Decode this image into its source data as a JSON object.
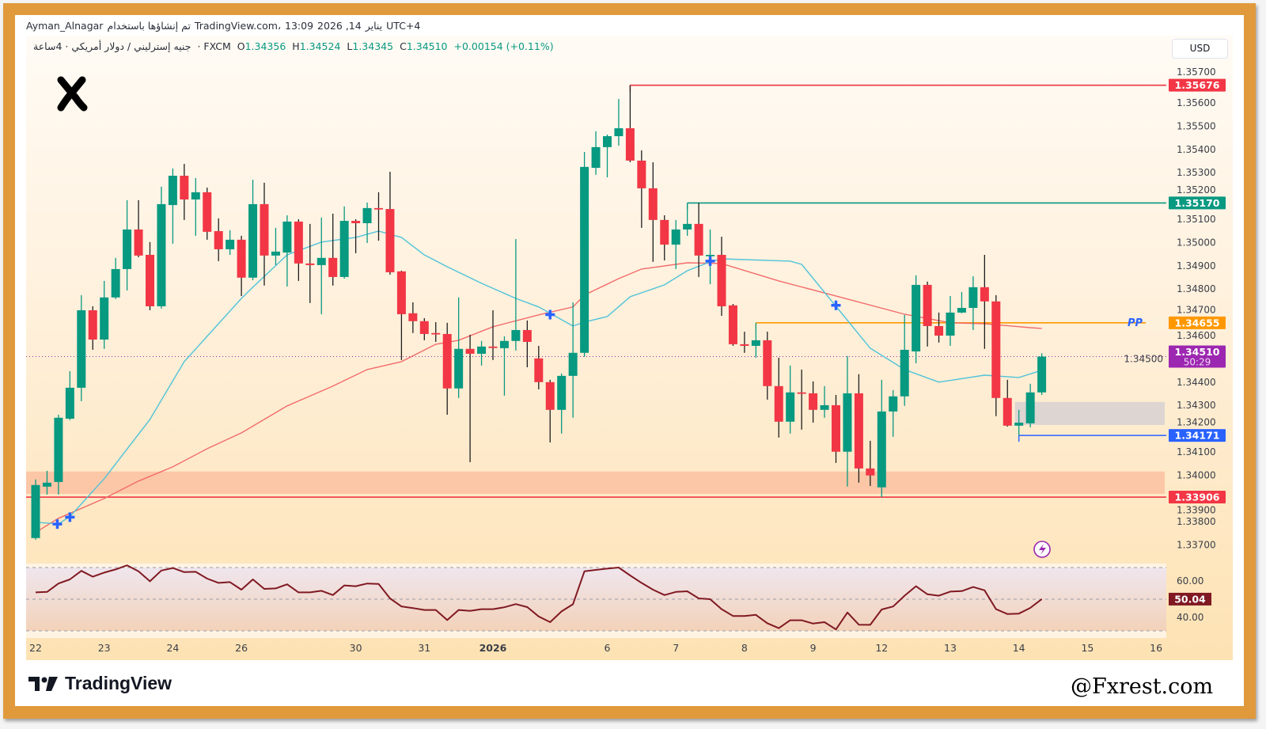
{
  "header": {
    "line1": [
      "Ayman_Alnagar",
      "تم إنشاؤها باستخدام",
      "TradingView.com،",
      "13:09",
      "2026 ,14",
      "يناير",
      "UTC+4"
    ],
    "symbol": "جنيه إسترليني / دولار أمريكي · 4ساعة",
    "exchange": "· FXCM",
    "ohlc": {
      "o_label": "O",
      "o": "1.34356",
      "h_label": "H",
      "h": "1.34524",
      "l_label": "L",
      "l": "1.34345",
      "c_label": "C",
      "c": "1.34510",
      "change": "+0.00154 (+0.11%)"
    },
    "currency_button": "USD"
  },
  "footer": {
    "brand": "TradingView",
    "watermark": "@Fxrest.com"
  },
  "colors": {
    "up": "#089981",
    "down": "#f23645",
    "fast_ma": "#4fc3d9",
    "slow_ma": "#f26b6b",
    "frame": "#e09a3c",
    "rsi": "#801922",
    "current": "#9c27b0",
    "pp": "#ff9800",
    "support": "#2962ff"
  },
  "chart_data": {
    "type": "candlestick",
    "timeframe": "4h",
    "ylim": [
      1.3367,
      1.3575
    ],
    "y_ticks": [
      "1.35700",
      "1.35600",
      "1.35500",
      "1.35400",
      "1.35300",
      "1.35200",
      "1.35100",
      "1.35000",
      "1.34900",
      "1.34800",
      "1.34700",
      "1.34600",
      "1.34500",
      "1.34400",
      "1.34300",
      "1.34200",
      "1.34100",
      "1.34000",
      "1.33900",
      "1.33800",
      "1.33700"
    ],
    "x_ticks": [
      {
        "label": "22",
        "candle": 0
      },
      {
        "label": "23",
        "candle": 6
      },
      {
        "label": "24",
        "candle": 12
      },
      {
        "label": "26",
        "candle": 18
      },
      {
        "label": "30",
        "candle": 28
      },
      {
        "label": "31",
        "candle": 34
      },
      {
        "label": "2026",
        "candle": 40,
        "bold": true
      },
      {
        "label": "6",
        "candle": 50
      },
      {
        "label": "7",
        "candle": 56
      },
      {
        "label": "8",
        "candle": 62
      },
      {
        "label": "9",
        "candle": 68
      },
      {
        "label": "12",
        "candle": 74
      },
      {
        "label": "13",
        "candle": 80
      },
      {
        "label": "14",
        "candle": 86
      },
      {
        "label": "15",
        "candle": 92
      },
      {
        "label": "16",
        "candle": 98
      }
    ],
    "candles_ohlc": [
      [
        1.3373,
        1.33982,
        1.33723,
        1.33958
      ],
      [
        1.33951,
        1.34019,
        1.33917,
        1.33968
      ],
      [
        1.33971,
        1.3426,
        1.33917,
        1.34247
      ],
      [
        1.34243,
        1.34447,
        1.34237,
        1.34376
      ],
      [
        1.34376,
        1.34774,
        1.34318,
        1.34709
      ],
      [
        1.34709,
        1.34726,
        1.34539,
        1.34583
      ],
      [
        1.34583,
        1.34835,
        1.34543,
        1.34764
      ],
      [
        1.34764,
        1.34934,
        1.34757,
        1.34886
      ],
      [
        1.34886,
        1.35182,
        1.34794,
        1.35056
      ],
      [
        1.35056,
        1.35182,
        1.34937,
        1.34944
      ],
      [
        1.34947,
        1.35002,
        1.34709,
        1.34726
      ],
      [
        1.34726,
        1.3524,
        1.34716,
        1.35165
      ],
      [
        1.35161,
        1.35318,
        1.34995,
        1.35287
      ],
      [
        1.35287,
        1.35338,
        1.35097,
        1.35185
      ],
      [
        1.35185,
        1.35277,
        1.35029,
        1.35216
      ],
      [
        1.35216,
        1.35236,
        1.35012,
        1.35046
      ],
      [
        1.35049,
        1.35104,
        1.3492,
        1.34971
      ],
      [
        1.34971,
        1.35053,
        1.34947,
        1.35012
      ],
      [
        1.35012,
        1.35029,
        1.3477,
        1.34849
      ],
      [
        1.34849,
        1.3527,
        1.34838,
        1.35165
      ],
      [
        1.35165,
        1.35257,
        1.34815,
        1.34944
      ],
      [
        1.34944,
        1.35063,
        1.34903,
        1.34961
      ],
      [
        1.34957,
        1.35117,
        1.34811,
        1.3509
      ],
      [
        1.3509,
        1.351,
        1.34835,
        1.3491
      ],
      [
        1.3491,
        1.3508,
        1.3474,
        1.34903
      ],
      [
        1.34903,
        1.35107,
        1.34692,
        1.34934
      ],
      [
        1.34934,
        1.35124,
        1.34815,
        1.34852
      ],
      [
        1.34852,
        1.35155,
        1.34845,
        1.35093
      ],
      [
        1.35093,
        1.351,
        1.34954,
        1.35083
      ],
      [
        1.35083,
        1.35172,
        1.34998,
        1.35148
      ],
      [
        1.35148,
        1.35216,
        1.35008,
        1.35144
      ],
      [
        1.35144,
        1.35304,
        1.34862,
        1.34872
      ],
      [
        1.34876,
        1.34879,
        1.34495,
        1.34692
      ],
      [
        1.34696,
        1.34743,
        1.34611,
        1.34662
      ],
      [
        1.34662,
        1.34675,
        1.3458,
        1.34607
      ],
      [
        1.34611,
        1.34658,
        1.34573,
        1.34607
      ],
      [
        1.34607,
        1.34655,
        1.3426,
        1.34373
      ],
      [
        1.34373,
        1.34764,
        1.34332,
        1.34543
      ],
      [
        1.34543,
        1.34604,
        1.34056,
        1.34522
      ],
      [
        1.34522,
        1.34577,
        1.34471,
        1.34553
      ],
      [
        1.34553,
        1.34709,
        1.34495,
        1.34549
      ],
      [
        1.34546,
        1.34597,
        1.34342,
        1.34577
      ],
      [
        1.34577,
        1.35015,
        1.34536,
        1.34624
      ],
      [
        1.34624,
        1.34665,
        1.34464,
        1.34573
      ],
      [
        1.34502,
        1.34556,
        1.34369,
        1.344
      ],
      [
        1.344,
        1.3441,
        1.34141,
        1.34281
      ],
      [
        1.34281,
        1.34437,
        1.34179,
        1.34427
      ],
      [
        1.34427,
        1.34743,
        1.34247,
        1.34526
      ],
      [
        1.34526,
        1.35389,
        1.34509,
        1.35325
      ],
      [
        1.35321,
        1.35478,
        1.35291,
        1.3541
      ],
      [
        1.3541,
        1.35464,
        1.3528,
        1.35457
      ],
      [
        1.35457,
        1.35617,
        1.35416,
        1.35491
      ],
      [
        1.35491,
        1.35676,
        1.35345,
        1.35352
      ],
      [
        1.35352,
        1.35396,
        1.35063,
        1.35233
      ],
      [
        1.35233,
        1.35345,
        1.34917,
        1.35097
      ],
      [
        1.35097,
        1.35117,
        1.34923,
        1.34991
      ],
      [
        1.34991,
        1.35097,
        1.34886,
        1.35056
      ],
      [
        1.35056,
        1.35168,
        1.35029,
        1.3508
      ],
      [
        1.3508,
        1.3517,
        1.34852,
        1.34944
      ],
      [
        1.34944,
        1.35056,
        1.34821,
        1.34947
      ],
      [
        1.34947,
        1.35025,
        1.34685,
        1.34726
      ],
      [
        1.3473,
        1.34736,
        1.34556,
        1.34563
      ],
      [
        1.34563,
        1.34617,
        1.34526,
        1.34556
      ],
      [
        1.34556,
        1.34655,
        1.34505,
        1.3458
      ],
      [
        1.3458,
        1.34617,
        1.34325,
        1.34383
      ],
      [
        1.34383,
        1.34505,
        1.34162,
        1.3423
      ],
      [
        1.3423,
        1.34471,
        1.34179,
        1.34356
      ],
      [
        1.34356,
        1.34454,
        1.34196,
        1.34352
      ],
      [
        1.34352,
        1.34403,
        1.34226,
        1.34281
      ],
      [
        1.34281,
        1.34383,
        1.34247,
        1.34301
      ],
      [
        1.34301,
        1.34345,
        1.34053,
        1.34101
      ],
      [
        1.34101,
        1.34512,
        1.33951,
        1.34352
      ],
      [
        1.34352,
        1.34434,
        1.33968,
        1.34029
      ],
      [
        1.34029,
        1.34148,
        1.33954,
        1.33999
      ],
      [
        1.33948,
        1.3441,
        1.33906,
        1.34274
      ],
      [
        1.34274,
        1.34366,
        1.34165,
        1.34339
      ],
      [
        1.34339,
        1.34689,
        1.34298,
        1.34539
      ],
      [
        1.34532,
        1.34859,
        1.34481,
        1.34818
      ],
      [
        1.34818,
        1.34832,
        1.34553,
        1.34641
      ],
      [
        1.34641,
        1.34699,
        1.3457,
        1.346
      ],
      [
        1.346,
        1.3477,
        1.34556,
        1.34699
      ],
      [
        1.34699,
        1.34787,
        1.34696,
        1.34719
      ],
      [
        1.34719,
        1.34855,
        1.34624,
        1.34808
      ],
      [
        1.34808,
        1.34947,
        1.34543,
        1.34747
      ],
      [
        1.34747,
        1.34774,
        1.34254,
        1.34332
      ],
      [
        1.34332,
        1.3441,
        1.34209,
        1.34213
      ],
      [
        1.34213,
        1.34281,
        1.34171,
        1.34226
      ],
      [
        1.34223,
        1.34393,
        1.34206,
        1.34356
      ],
      [
        1.34356,
        1.34524,
        1.34345,
        1.3451
      ]
    ],
    "fast_ma": [
      [
        0,
        1.33798
      ],
      [
        2,
        1.33791
      ],
      [
        3,
        1.33822
      ],
      [
        6,
        1.33985
      ],
      [
        10,
        1.3424
      ],
      [
        13,
        1.34488
      ],
      [
        18,
        1.3476
      ],
      [
        19,
        1.34808
      ],
      [
        22,
        1.34947
      ],
      [
        25,
        1.35002
      ],
      [
        28,
        1.35022
      ],
      [
        30,
        1.35049
      ],
      [
        32,
        1.35022
      ],
      [
        34,
        1.34947
      ],
      [
        36,
        1.34896
      ],
      [
        39,
        1.34825
      ],
      [
        42,
        1.3476
      ],
      [
        44,
        1.34723
      ],
      [
        47,
        1.34641
      ],
      [
        48,
        1.34658
      ],
      [
        50,
        1.34682
      ],
      [
        52,
        1.34767
      ],
      [
        55,
        1.34818
      ],
      [
        57,
        1.34879
      ],
      [
        59,
        1.34917
      ],
      [
        60,
        1.3493
      ],
      [
        66,
        1.3492
      ],
      [
        67,
        1.34906
      ],
      [
        70,
        1.34726
      ],
      [
        73,
        1.34546
      ],
      [
        76,
        1.34454
      ],
      [
        79,
        1.344
      ],
      [
        83,
        1.3443
      ],
      [
        86,
        1.3442
      ],
      [
        88,
        1.34451
      ]
    ],
    "slow_ma": [
      [
        0,
        1.33754
      ],
      [
        2,
        1.33815
      ],
      [
        6,
        1.339
      ],
      [
        9,
        1.33975
      ],
      [
        12,
        1.34036
      ],
      [
        15,
        1.34114
      ],
      [
        18,
        1.34182
      ],
      [
        22,
        1.34298
      ],
      [
        26,
        1.34383
      ],
      [
        29,
        1.34454
      ],
      [
        32,
        1.34488
      ],
      [
        35,
        1.34563
      ],
      [
        37,
        1.3458
      ],
      [
        40,
        1.34638
      ],
      [
        44,
        1.34689
      ],
      [
        47,
        1.34723
      ],
      [
        48,
        1.34774
      ],
      [
        51,
        1.34845
      ],
      [
        53,
        1.34886
      ],
      [
        57,
        1.34913
      ],
      [
        60,
        1.3491
      ],
      [
        65,
        1.34835
      ],
      [
        71,
        1.34757
      ],
      [
        76,
        1.34692
      ],
      [
        80,
        1.34655
      ],
      [
        83,
        1.34651
      ],
      [
        87,
        1.34634
      ],
      [
        88,
        1.34631
      ]
    ],
    "cross_markers": [
      {
        "candle": 1.9,
        "price": 1.3379
      },
      {
        "candle": 3,
        "price": 1.3382
      },
      {
        "candle": 45,
        "price": 1.3469
      },
      {
        "candle": 59,
        "price": 1.3492
      },
      {
        "candle": 70,
        "price": 1.3473
      }
    ],
    "levels": [
      {
        "price": 1.35676,
        "label": "1.35676",
        "color": "#f23645",
        "from_candle": 52
      },
      {
        "price": 1.3517,
        "label": "1.35170",
        "color": "#089981",
        "from_candle": 57
      },
      {
        "price": 1.34655,
        "label": "1.34655",
        "color": "#ff9800",
        "from_candle": 63,
        "tag": "PP"
      },
      {
        "price": 1.34171,
        "label": "1.34171",
        "color": "#2962ff",
        "from_candle": 86
      },
      {
        "price": 1.33906,
        "label": "1.33906",
        "color": "#f23645",
        "from_candle": -1
      }
    ],
    "current_price": {
      "price": 1.3451,
      "label": "1.34510",
      "countdown": "50:29"
    },
    "zones": [
      {
        "top": 1.34016,
        "bottom": 1.3392,
        "from_candle": -1,
        "color": "#fcc3a3"
      },
      {
        "top": 1.34315,
        "bottom": 1.34216,
        "from_candle": 86,
        "color": "#d9d3d2"
      }
    ],
    "rsi": {
      "levels": [
        70,
        50,
        30
      ],
      "tick_labels": [
        "60.00",
        "40.00"
      ],
      "current_label": "50.04",
      "values": [
        54.3,
        54.6,
        59.9,
        62.5,
        67.9,
        64.2,
        66.8,
        68.8,
        71.4,
        67.6,
        61.3,
        68.1,
        69.7,
        67.1,
        67.3,
        63.0,
        60.3,
        60.8,
        56.0,
        62.5,
        56.5,
        56.8,
        59.4,
        54.3,
        54.3,
        55.3,
        52.6,
        58.7,
        58.2,
        59.9,
        59.6,
        50.5,
        45.4,
        44.4,
        43.2,
        43.2,
        36.8,
        43.2,
        42.6,
        43.7,
        43.7,
        44.9,
        46.9,
        45.0,
        39.1,
        35.5,
        42.3,
        46.8,
        67.6,
        68.5,
        69.3,
        70.0,
        65.0,
        60.3,
        56.0,
        52.6,
        54.6,
        55.0,
        50.5,
        50.0,
        43.7,
        39.4,
        39.4,
        40.1,
        34.8,
        31.7,
        36.7,
        36.7,
        34.6,
        35.5,
        30.9,
        41.6,
        33.9,
        33.8,
        43.5,
        45.4,
        52.2,
        58.2,
        53.1,
        52.2,
        54.8,
        55.1,
        57.7,
        55.6,
        43.7,
        40.6,
        40.9,
        44.5,
        50.04
      ]
    }
  }
}
